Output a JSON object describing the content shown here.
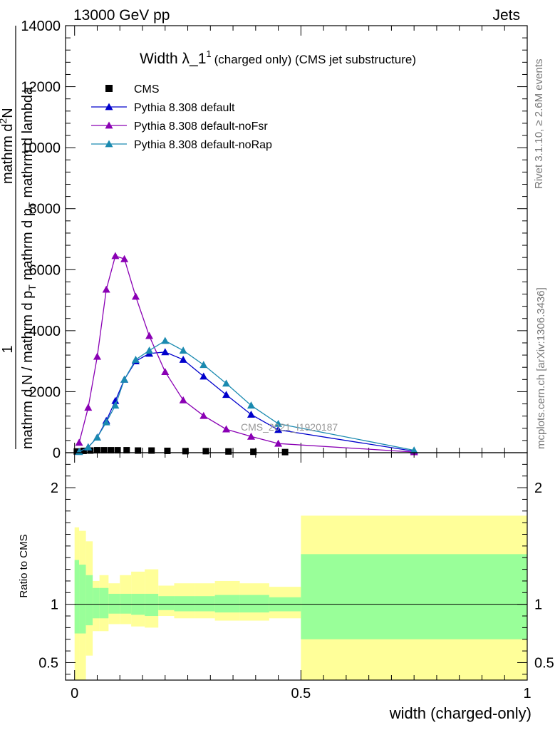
{
  "header": {
    "left": "13000 GeV pp",
    "right": "Jets"
  },
  "side_text": {
    "rivet": "Rivet 3.1.10, ≥ 2.6M events",
    "mcplots": "mcplots.cern.ch [arXiv:1306.3436]"
  },
  "watermark": "CMS_2021_I1920187",
  "colors": {
    "cms": "#000000",
    "default": "#0000cc",
    "noFsr": "#8a00b4",
    "noRap": "#1a8ab0",
    "band_outer": "#ffff99",
    "band_inner": "#99ff99"
  },
  "chart_data": [
    {
      "type": "line",
      "title": "Width λ_1¹ (charged only) (CMS jet substructure)",
      "title_main": "Width λ_1",
      "title_sup": "1",
      "title_rest": "(charged only) (CMS jet substructure)",
      "ylabel_parts": [
        "1",
        "mathrm d N / mathrm d p",
        "T",
        "mathrm d p",
        "T",
        "mathrm d lambda",
        "mathrm d",
        "2",
        "N"
      ],
      "xlim": [
        -0.02,
        1.0
      ],
      "ylim": [
        0,
        14000
      ],
      "yticks": [
        0,
        2000,
        4000,
        6000,
        8000,
        10000,
        12000,
        14000
      ],
      "ytick_labels": [
        "0",
        "2000",
        "4000",
        "6000",
        "8000",
        "10000",
        "12000",
        "14000"
      ],
      "legend_position": "top-left",
      "series": [
        {
          "name": "CMS",
          "marker": "square",
          "x": [
            0.005,
            0.02,
            0.035,
            0.05,
            0.065,
            0.08,
            0.095,
            0.115,
            0.14,
            0.17,
            0.205,
            0.245,
            0.29,
            0.34,
            0.395,
            0.465
          ],
          "y": [
            40,
            60,
            70,
            80,
            80,
            80,
            80,
            80,
            70,
            70,
            60,
            50,
            50,
            40,
            30,
            20
          ]
        },
        {
          "name": "Pythia 8.308 default",
          "marker": "triangle",
          "x": [
            0.01,
            0.03,
            0.05,
            0.07,
            0.09,
            0.11,
            0.135,
            0.165,
            0.2,
            0.24,
            0.285,
            0.335,
            0.39,
            0.45,
            0.75
          ],
          "y": [
            30,
            180,
            500,
            1050,
            1700,
            2400,
            3000,
            3250,
            3300,
            3050,
            2500,
            1900,
            1250,
            750,
            50
          ]
        },
        {
          "name": "Pythia 8.308 default-noFsr",
          "marker": "triangle",
          "x": [
            0.01,
            0.03,
            0.05,
            0.07,
            0.09,
            0.11,
            0.135,
            0.165,
            0.2,
            0.24,
            0.285,
            0.335,
            0.39,
            0.45,
            0.75
          ],
          "y": [
            330,
            1480,
            3150,
            5350,
            6450,
            6350,
            5120,
            3830,
            2650,
            1720,
            1210,
            770,
            530,
            300,
            20
          ]
        },
        {
          "name": "Pythia 8.308 default-noRap",
          "marker": "triangle",
          "x": [
            0.01,
            0.03,
            0.05,
            0.07,
            0.09,
            0.11,
            0.135,
            0.165,
            0.2,
            0.24,
            0.285,
            0.335,
            0.39,
            0.45,
            0.75
          ],
          "y": [
            30,
            180,
            500,
            1000,
            1550,
            2400,
            3050,
            3350,
            3670,
            3350,
            2880,
            2270,
            1550,
            950,
            80
          ]
        }
      ]
    },
    {
      "type": "area",
      "ylabel": "Ratio to CMS",
      "xlabel": "width (charged-only)",
      "xlim": [
        -0.02,
        1.0
      ],
      "ylim": [
        0.35,
        2.3
      ],
      "xticks": [
        0,
        0.5,
        1
      ],
      "xtick_labels": [
        "0",
        "0.5",
        "1"
      ],
      "yticks": [
        0.5,
        1,
        2
      ],
      "ytick_labels": [
        "0.5",
        "1",
        "2"
      ],
      "reference": 1,
      "bins": [
        {
          "x0": 0.0,
          "x1": 0.01,
          "out_lo": 0.35,
          "out_hi": 1.66,
          "in_lo": 0.75,
          "in_hi": 1.38
        },
        {
          "x0": 0.01,
          "x1": 0.025,
          "out_lo": 0.35,
          "out_hi": 1.63,
          "in_lo": 0.75,
          "in_hi": 1.34
        },
        {
          "x0": 0.025,
          "x1": 0.04,
          "out_lo": 0.56,
          "out_hi": 1.54,
          "in_lo": 0.82,
          "in_hi": 1.25
        },
        {
          "x0": 0.04,
          "x1": 0.055,
          "out_lo": 0.77,
          "out_hi": 1.2,
          "in_lo": 0.88,
          "in_hi": 1.14
        },
        {
          "x0": 0.055,
          "x1": 0.075,
          "out_lo": 0.77,
          "out_hi": 1.25,
          "in_lo": 0.88,
          "in_hi": 1.14
        },
        {
          "x0": 0.075,
          "x1": 0.1,
          "out_lo": 0.83,
          "out_hi": 1.18,
          "in_lo": 0.92,
          "in_hi": 1.09
        },
        {
          "x0": 0.1,
          "x1": 0.125,
          "out_lo": 0.83,
          "out_hi": 1.25,
          "in_lo": 0.92,
          "in_hi": 1.09
        },
        {
          "x0": 0.125,
          "x1": 0.155,
          "out_lo": 0.81,
          "out_hi": 1.28,
          "in_lo": 0.91,
          "in_hi": 1.09
        },
        {
          "x0": 0.155,
          "x1": 0.185,
          "out_lo": 0.8,
          "out_hi": 1.3,
          "in_lo": 0.9,
          "in_hi": 1.09
        },
        {
          "x0": 0.185,
          "x1": 0.22,
          "out_lo": 0.9,
          "out_hi": 1.16,
          "in_lo": 0.95,
          "in_hi": 1.07
        },
        {
          "x0": 0.22,
          "x1": 0.265,
          "out_lo": 0.88,
          "out_hi": 1.18,
          "in_lo": 0.94,
          "in_hi": 1.07
        },
        {
          "x0": 0.265,
          "x1": 0.31,
          "out_lo": 0.88,
          "out_hi": 1.18,
          "in_lo": 0.94,
          "in_hi": 1.07
        },
        {
          "x0": 0.31,
          "x1": 0.365,
          "out_lo": 0.86,
          "out_hi": 1.2,
          "in_lo": 0.93,
          "in_hi": 1.08
        },
        {
          "x0": 0.365,
          "x1": 0.43,
          "out_lo": 0.86,
          "out_hi": 1.18,
          "in_lo": 0.93,
          "in_hi": 1.08
        },
        {
          "x0": 0.43,
          "x1": 0.5,
          "out_lo": 0.88,
          "out_hi": 1.15,
          "in_lo": 0.94,
          "in_hi": 1.06
        },
        {
          "x0": 0.5,
          "x1": 1.0,
          "out_lo": 0.35,
          "out_hi": 1.76,
          "in_lo": 0.7,
          "in_hi": 1.43
        }
      ]
    }
  ]
}
